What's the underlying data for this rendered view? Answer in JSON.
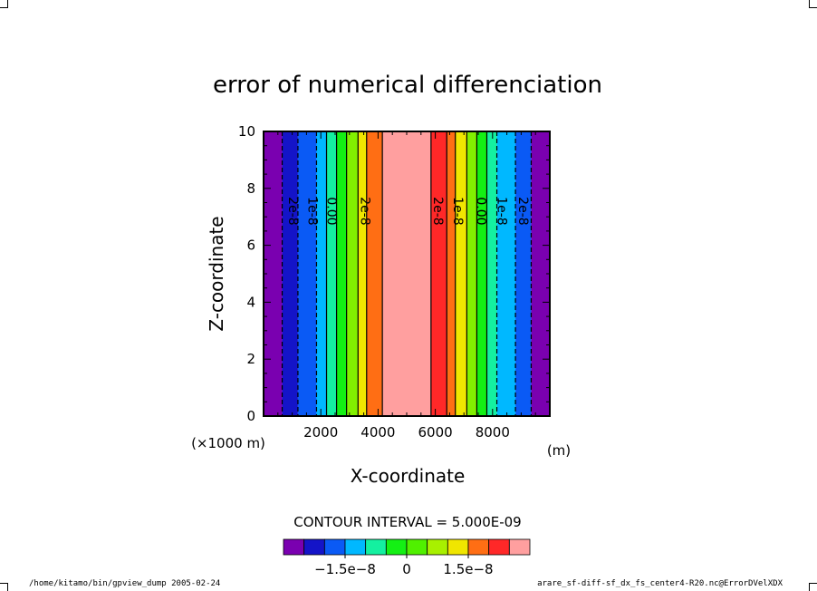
{
  "chart_data": {
    "type": "contour",
    "title": "error of numerical differenciation",
    "xlabel": "X-coordinate",
    "xunit_factor": "(×1000 m)",
    "xunit": "(m)",
    "ylabel": "Z-coordinate",
    "xlim": [
      0,
      10000
    ],
    "ylim": [
      0,
      10
    ],
    "x_ticks": [
      2000,
      4000,
      6000,
      8000
    ],
    "y_ticks": [
      0,
      2,
      4,
      6,
      8,
      10
    ],
    "bands": [
      {
        "x0": 0,
        "x1": 650,
        "color": "#7a00b0"
      },
      {
        "x0": 650,
        "x1": 1200,
        "color": "#1414c8"
      },
      {
        "x0": 1200,
        "x1": 1850,
        "color": "#0a5af5"
      },
      {
        "x0": 1850,
        "x1": 2200,
        "color": "#00b8ff"
      },
      {
        "x0": 2200,
        "x1": 2550,
        "color": "#14f0a0"
      },
      {
        "x0": 2550,
        "x1": 2900,
        "color": "#14f014"
      },
      {
        "x0": 2900,
        "x1": 3300,
        "color": "#82f000"
      },
      {
        "x0": 3300,
        "x1": 3600,
        "color": "#f0e600"
      },
      {
        "x0": 3600,
        "x1": 4150,
        "color": "#ff6e14"
      },
      {
        "x0": 4150,
        "x1": 5850,
        "color": "#ff9f9f"
      },
      {
        "x0": 5850,
        "x1": 6400,
        "color": "#ff2828"
      },
      {
        "x0": 6400,
        "x1": 6700,
        "color": "#ff6e14"
      },
      {
        "x0": 6700,
        "x1": 7100,
        "color": "#f0e600"
      },
      {
        "x0": 7100,
        "x1": 7450,
        "color": "#82f000"
      },
      {
        "x0": 7450,
        "x1": 7800,
        "color": "#14f014"
      },
      {
        "x0": 7800,
        "x1": 8150,
        "color": "#14f0a0"
      },
      {
        "x0": 8150,
        "x1": 8800,
        "color": "#00b8ff"
      },
      {
        "x0": 8800,
        "x1": 9350,
        "color": "#0a5af5"
      },
      {
        "x0": 9350,
        "x1": 10000,
        "color": "#7a00b0"
      }
    ],
    "contour_lines": [
      {
        "x": 650,
        "dashed": true
      },
      {
        "x": 1200,
        "dashed": true
      },
      {
        "x": 1850,
        "dashed": true
      },
      {
        "x": 2200,
        "dashed": false
      },
      {
        "x": 2550,
        "dashed": false
      },
      {
        "x": 2900,
        "dashed": false
      },
      {
        "x": 3300,
        "dashed": false
      },
      {
        "x": 3600,
        "dashed": false
      },
      {
        "x": 4150,
        "dashed": false
      },
      {
        "x": 5850,
        "dashed": false
      },
      {
        "x": 6400,
        "dashed": false
      },
      {
        "x": 6700,
        "dashed": false
      },
      {
        "x": 7100,
        "dashed": false
      },
      {
        "x": 7450,
        "dashed": false
      },
      {
        "x": 7800,
        "dashed": false
      },
      {
        "x": 8150,
        "dashed": true
      },
      {
        "x": 8800,
        "dashed": true
      },
      {
        "x": 9350,
        "dashed": true
      }
    ],
    "contour_labels": [
      {
        "x": 1020,
        "y": 7.2,
        "text": "2e-8"
      },
      {
        "x": 1700,
        "y": 7.2,
        "text": "1e-8"
      },
      {
        "x": 2350,
        "y": 7.2,
        "text": "0.00"
      },
      {
        "x": 3530,
        "y": 7.2,
        "text": "2e-8"
      },
      {
        "x": 6080,
        "y": 7.2,
        "text": "2e-8"
      },
      {
        "x": 6780,
        "y": 7.2,
        "text": "1e-8"
      },
      {
        "x": 7580,
        "y": 7.2,
        "text": "0.00"
      },
      {
        "x": 8300,
        "y": 7.2,
        "text": "1e-8"
      },
      {
        "x": 9050,
        "y": 7.2,
        "text": "2e-8"
      }
    ],
    "contour_interval_text": "CONTOUR INTERVAL = 5.000E-09",
    "colorbar": {
      "colors": [
        "#7a00b0",
        "#1414c8",
        "#0a5af5",
        "#00b8ff",
        "#14f0a0",
        "#14f014",
        "#50f000",
        "#a8f000",
        "#f0e600",
        "#ff6e14",
        "#ff2828",
        "#ff9f9f"
      ],
      "tick_labels": [
        "−1.5e−8",
        "0",
        "1.5e−8"
      ]
    }
  },
  "footer": {
    "left": "/home/kitamo/bin/gpview_dump  2005-02-24",
    "right": "arare_sf-diff-sf_dx_fs_center4-R20.nc@ErrorDVelXDX"
  }
}
